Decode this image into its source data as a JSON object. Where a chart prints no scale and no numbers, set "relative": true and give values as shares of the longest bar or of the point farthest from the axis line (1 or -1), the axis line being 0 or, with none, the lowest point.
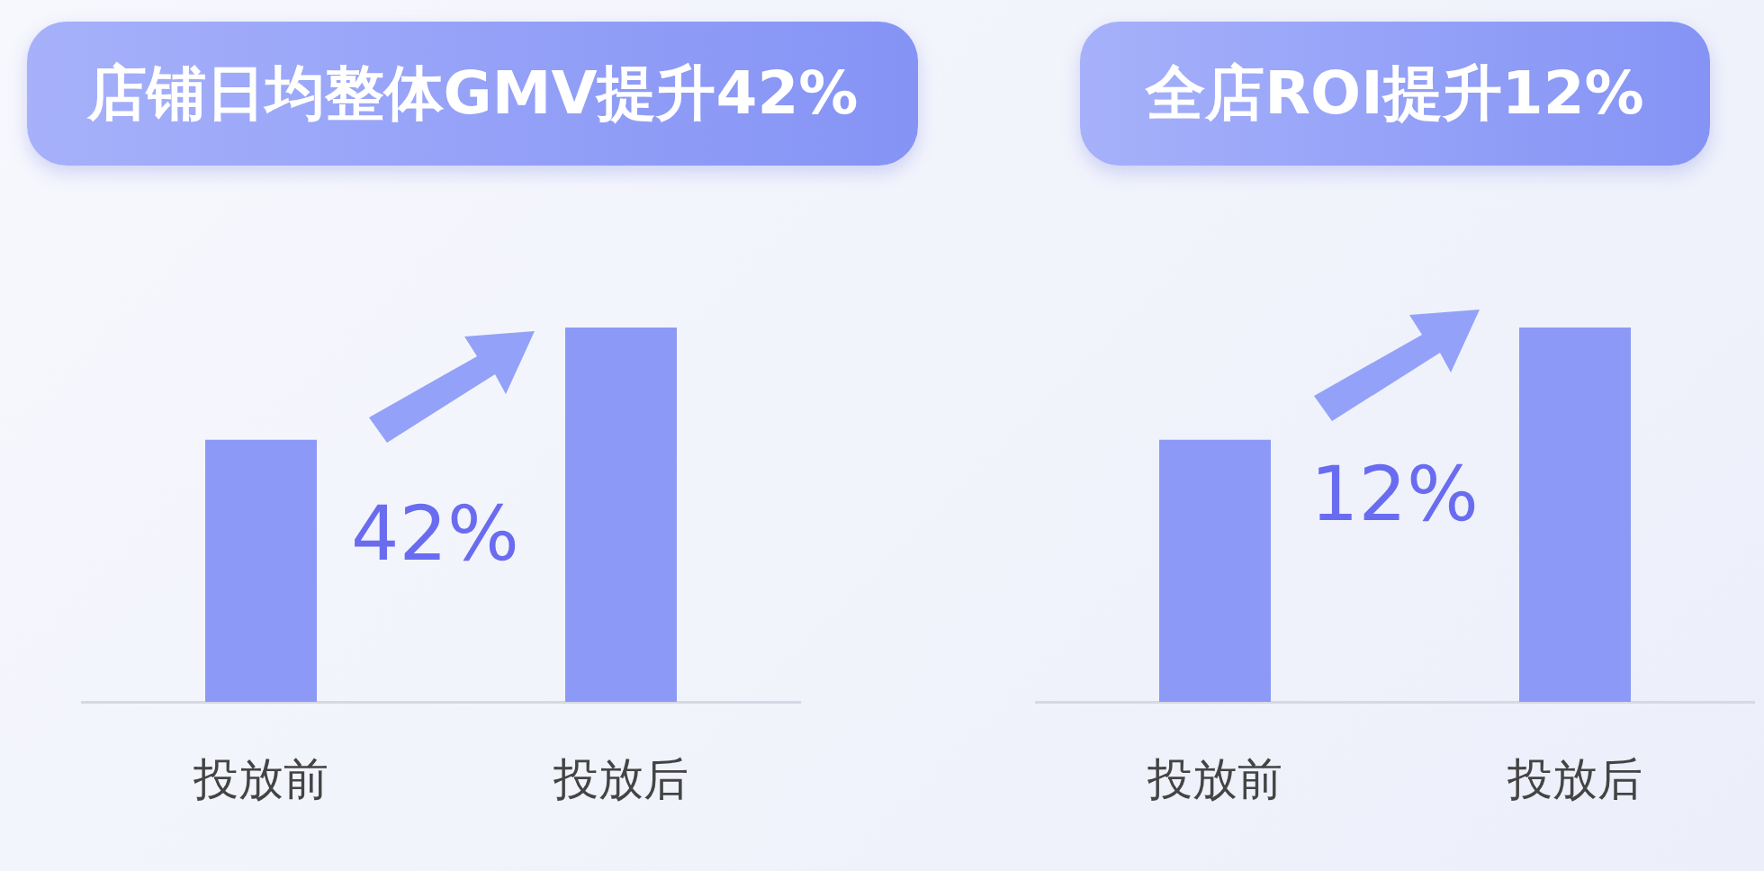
{
  "chart_data": [
    {
      "type": "bar",
      "title": "店铺日均整体GMV提升42%",
      "categories": [
        "投放前",
        "投放后"
      ],
      "values": [
        0.7,
        1
      ],
      "color": "#8d99f7",
      "relative": true,
      "annotations": [
        "42%"
      ]
    },
    {
      "type": "bar",
      "title": "全店ROI提升12%",
      "categories": [
        "投放前",
        "投放后"
      ],
      "values": [
        0.7,
        1
      ],
      "color": "#8d99f7",
      "relative": true,
      "annotations": [
        "12%"
      ]
    }
  ]
}
